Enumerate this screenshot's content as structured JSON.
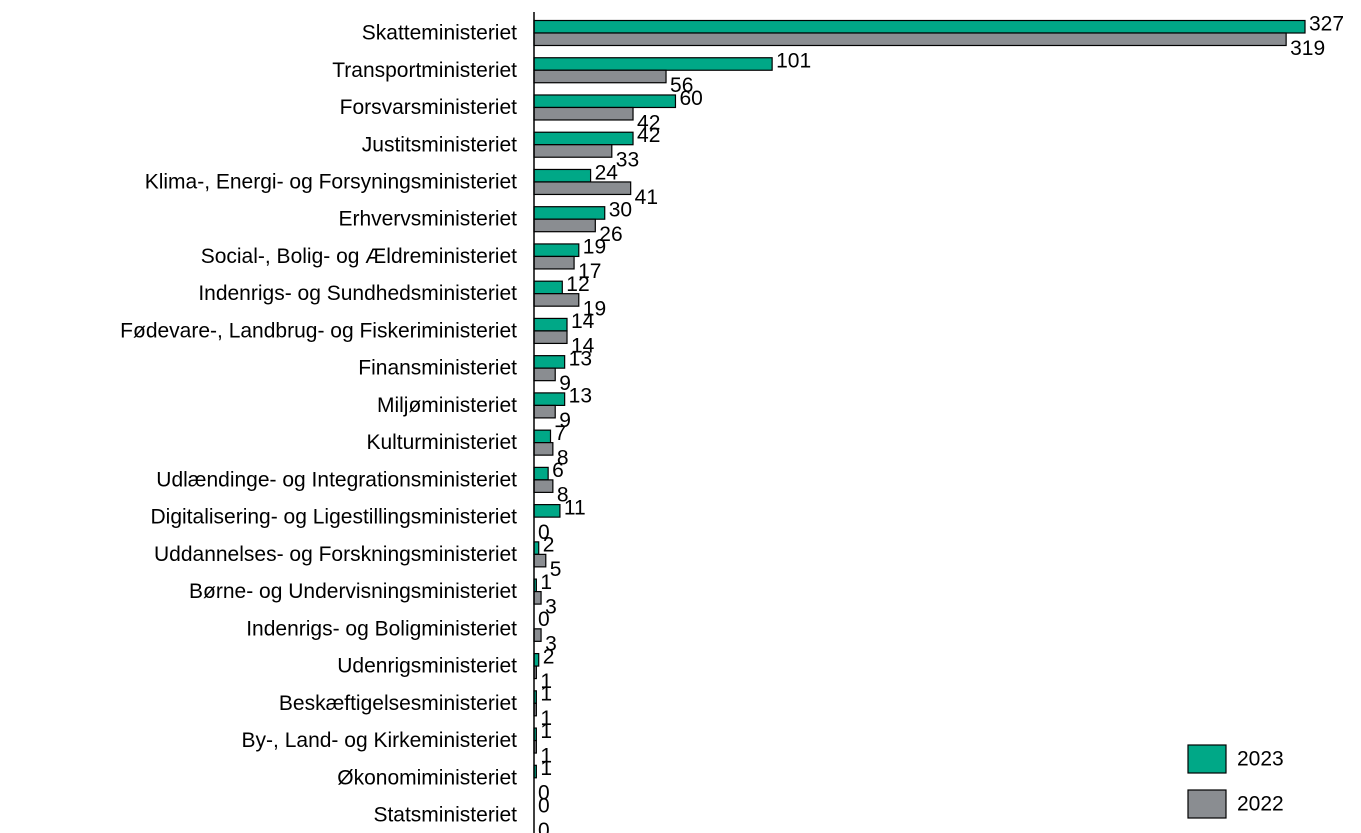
{
  "chart_data": {
    "type": "bar",
    "orientation": "horizontal",
    "categories": [
      "Skatteministeriet",
      "Transportministeriet",
      "Forsvarsministeriet",
      "Justitsministeriet",
      "Klima-, Energi- og Forsyningsministeriet",
      "Erhvervsministeriet",
      "Social-, Bolig- og Ældreministeriet",
      "Indenrigs- og Sundhedsministeriet",
      "Fødevare-, Landbrug- og Fiskeriministeriet",
      "Finansministeriet",
      "Miljøministeriet",
      "Kulturministeriet",
      "Udlændinge- og Integrationsministeriet",
      "Digitalisering- og Ligestillingsministeriet",
      "Uddannelses- og Forskningsministeriet",
      "Børne- og Undervisningsministeriet",
      "Indenrigs- og Boligministeriet",
      "Udenrigsministeriet",
      "Beskæftigelsesministeriet",
      "By-, Land- og Kirkeministeriet",
      "Økonomiministeriet",
      "Statsministeriet"
    ],
    "series": [
      {
        "name": "2023",
        "color": "#00a887",
        "values": [
          327,
          101,
          60,
          42,
          24,
          30,
          19,
          12,
          14,
          13,
          13,
          7,
          6,
          11,
          2,
          1,
          0,
          2,
          1,
          1,
          1,
          0
        ]
      },
      {
        "name": "2022",
        "color": "#8a8d91",
        "values": [
          319,
          56,
          42,
          33,
          41,
          26,
          17,
          19,
          14,
          9,
          9,
          8,
          8,
          0,
          5,
          3,
          3,
          1,
          1,
          1,
          0,
          0
        ]
      }
    ],
    "legend": "bottom-right"
  }
}
